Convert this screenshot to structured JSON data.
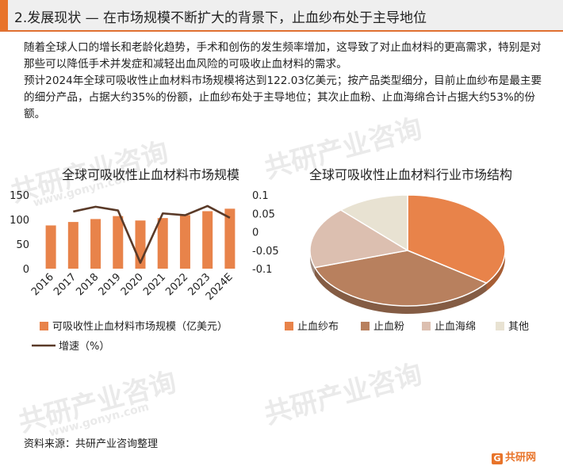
{
  "header": {
    "title": "2.发展现状 — 在市场规模不断扩大的背景下，止血纱布处于主导地位"
  },
  "paragraph": [
    "随着全球人口的增长和老龄化趋势，手术和创伤的发生频率增加，这导致了对止血材料的更高需求，特别是对那些可以降低手术并发症和减轻出血风险的可吸收止血材料的需求。",
    "预计2024年全球可吸收性止血材料市场规模将达到122.03亿美元；按产品类型细分，目前止血纱布是最主要的细分产品，占据大约35%的份额，止血纱布处于主导地位；其次止血粉、止血海绵合计占据大约53%的份额。"
  ],
  "watermark": {
    "text": "共研产业咨询",
    "sub": "www.gonyn.com"
  },
  "colors": {
    "accent": "#e8742a",
    "bar": "#e8834a",
    "line": "#5a3a28"
  },
  "chart_data": [
    {
      "type": "bar",
      "title": "全球可吸收性止血材料市场规模",
      "categories": [
        "2016",
        "2017",
        "2018",
        "2019",
        "2020",
        "2021",
        "2022",
        "2023",
        "2024E"
      ],
      "series": [
        {
          "name": "可吸收性止血材料市场规模（亿美元）",
          "type": "bar",
          "axis": "left",
          "values": [
            88,
            95,
            101,
            107,
            98,
            103,
            109,
            117,
            122.03
          ]
        },
        {
          "name": "增速（%）",
          "type": "line",
          "axis": "right",
          "values": [
            null,
            0.055,
            0.068,
            0.058,
            -0.084,
            0.05,
            0.045,
            0.07,
            0.038
          ]
        }
      ],
      "ylim_left": [
        0,
        150
      ],
      "yticks_left": [
        "0",
        "50",
        "100",
        "150"
      ],
      "ylim_right": [
        -0.1,
        0.1
      ],
      "yticks_right": [
        "0.1",
        "0.05",
        "0",
        "-0.05",
        "-0.1"
      ],
      "grid": false,
      "legend": "bottom"
    },
    {
      "type": "pie",
      "title": "全球可吸收性止血材料行业市场结构",
      "labels": [
        "止血纱布",
        "止血粉",
        "止血海绵",
        "其他"
      ],
      "values": [
        35,
        35,
        18,
        12
      ],
      "colors": [
        "#e8834a",
        "#b8805e",
        "#dcbfb0",
        "#e8e2d2"
      ],
      "legend": "bottom"
    }
  ],
  "footer": {
    "source": "资料来源：共研产业咨询整理",
    "logo": "共研网",
    "logo_mark": "G"
  }
}
